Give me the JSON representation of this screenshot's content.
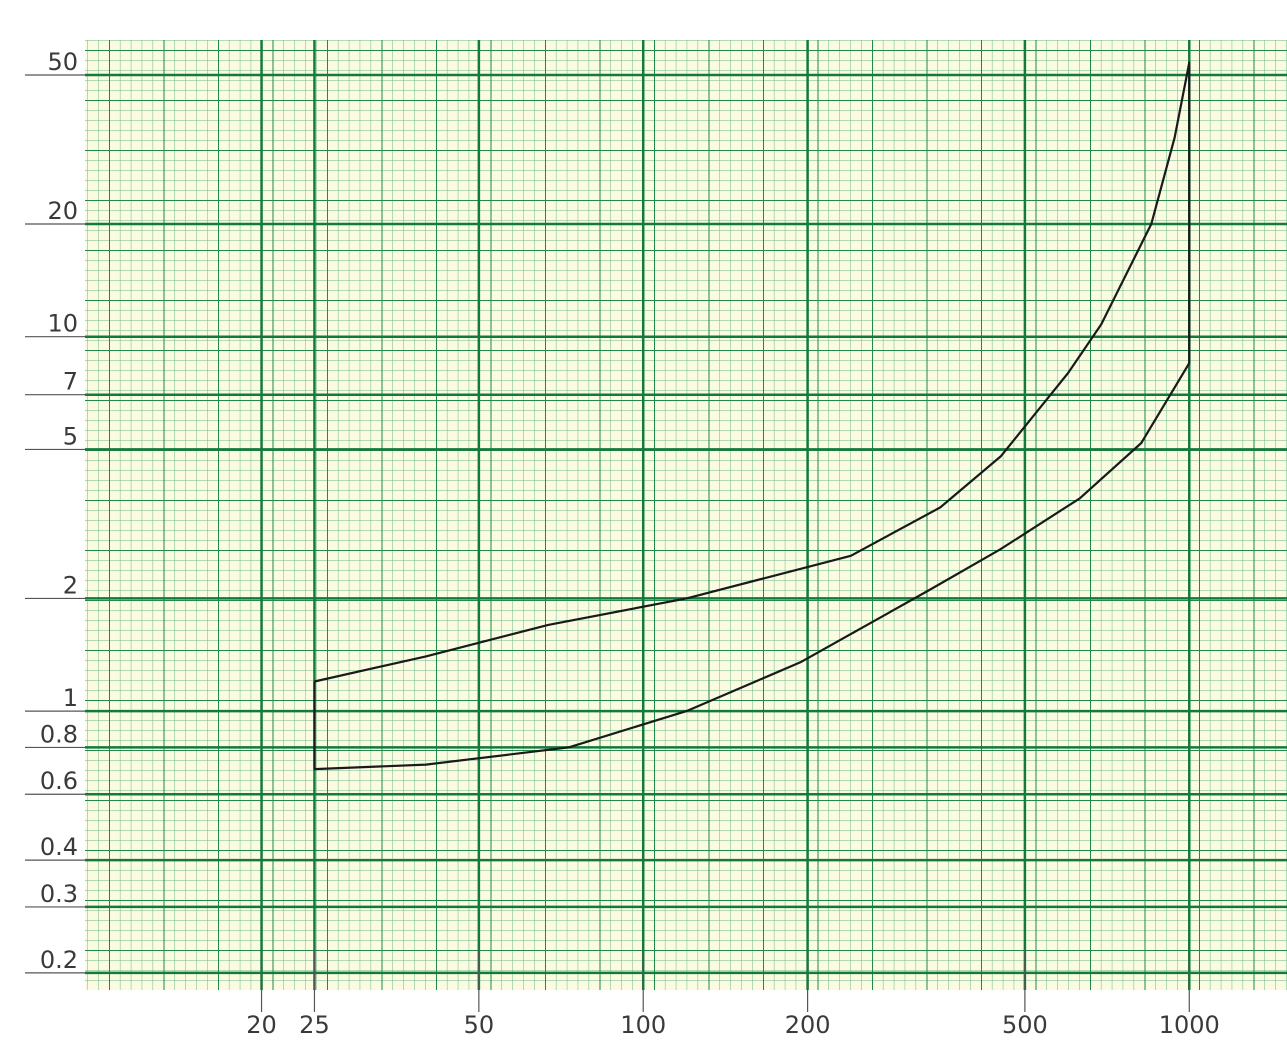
{
  "chart_data": {
    "type": "line",
    "x": [
      25,
      40,
      67,
      120,
      240,
      350,
      452,
      600,
      690,
      852,
      940,
      1000,
      1000,
      817,
      630,
      450,
      333,
      194,
      120,
      73,
      40,
      25,
      25
    ],
    "series": [
      {
        "color": "#1a1a1a",
        "values": [
          1.2,
          1.4,
          1.7,
          2.0,
          2.6,
          3.5,
          4.8,
          8,
          10.8,
          20,
          34,
          54,
          8.5,
          5.2,
          3.7,
          2.7,
          2.1,
          1.35,
          1.0,
          0.8,
          0.72,
          0.7,
          1.2
        ]
      }
    ],
    "xscale": "log",
    "yscale": "log",
    "xlim": [
      9.5,
      1510
    ],
    "ylim": [
      0.18,
      62
    ],
    "xticks": [
      20,
      25,
      50,
      100,
      200,
      500,
      1000
    ],
    "yticks": [
      0.2,
      0.3,
      0.4,
      0.6,
      0.8,
      1,
      2,
      5,
      7,
      10,
      20,
      50
    ],
    "grid": true
  }
}
